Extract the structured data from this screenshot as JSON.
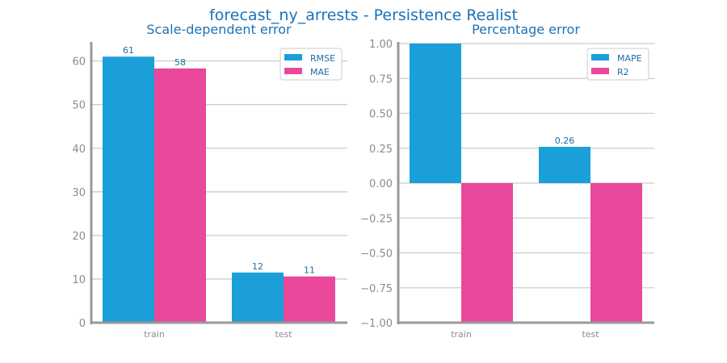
{
  "title": "forecast_ny_arrests - Persistence Realist",
  "colors": {
    "blue": "#1a9fd8",
    "pink": "#e9489b",
    "grid": "#cccccc",
    "axis": "#999999",
    "text": "#1a72b8"
  },
  "chart_data": [
    {
      "type": "bar",
      "title": "Scale-dependent error",
      "categories": [
        "train",
        "test"
      ],
      "series": [
        {
          "name": "RMSE",
          "values": [
            61,
            11.5
          ],
          "labels": [
            "61",
            "12"
          ]
        },
        {
          "name": "MAE",
          "values": [
            58.3,
            10.6
          ],
          "labels": [
            "58",
            "11"
          ]
        }
      ],
      "ylim": [
        0,
        64
      ],
      "yticks": [
        0,
        10,
        20,
        30,
        40,
        50,
        60
      ],
      "ytick_labels": [
        "0",
        "10",
        "20",
        "30",
        "40",
        "50",
        "60"
      ],
      "grid": true,
      "legend": "top-right"
    },
    {
      "type": "bar",
      "title": "Percentage error",
      "categories": [
        "train",
        "test"
      ],
      "series": [
        {
          "name": "MAPE",
          "values": [
            1.0,
            0.26
          ],
          "labels": [
            "",
            "0.26"
          ]
        },
        {
          "name": "R2",
          "values": [
            -1.0,
            -1.0
          ],
          "labels": [
            "",
            ""
          ]
        }
      ],
      "ylim": [
        -1.0,
        1.0
      ],
      "yticks": [
        -1.0,
        -0.75,
        -0.5,
        -0.25,
        0.0,
        0.25,
        0.5,
        0.75,
        1.0
      ],
      "ytick_labels": [
        "−1.00",
        "−0.75",
        "−0.50",
        "−0.25",
        "0.00",
        "0.25",
        "0.50",
        "0.75",
        "1.00"
      ],
      "grid": true,
      "legend": "top-right"
    }
  ]
}
